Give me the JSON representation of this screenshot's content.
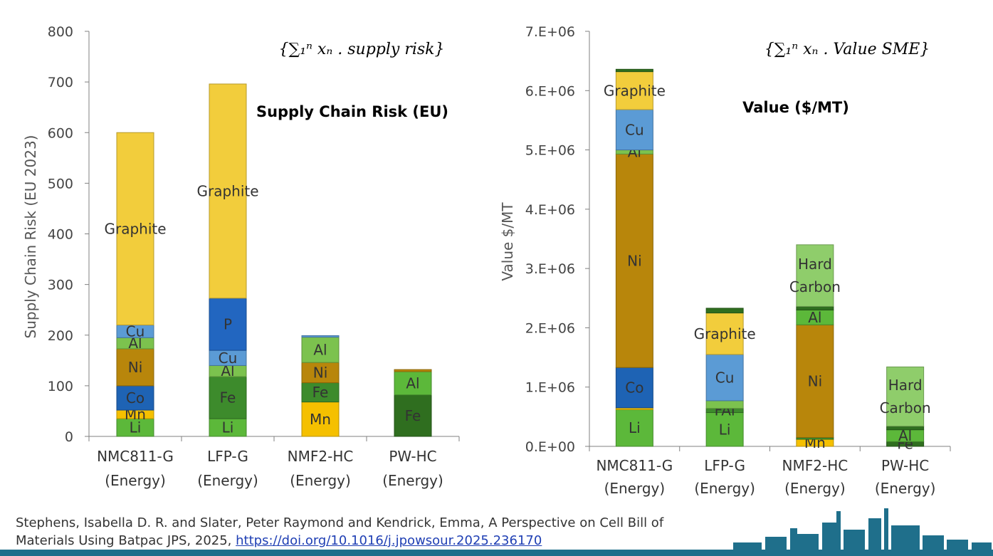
{
  "chart_data": [
    {
      "type": "bar",
      "stacked": true,
      "title": "Supply Chain Risk (EU)",
      "formula": "{∑₁ⁿ xₙ . supply risk}",
      "ylabel": "Supply Chain Risk (EU 2023)",
      "ylim": [
        0,
        800
      ],
      "yticks": [
        "0",
        "100",
        "200",
        "300",
        "400",
        "500",
        "600",
        "700",
        "800"
      ],
      "categories": [
        [
          "NMC811-G",
          "(Energy)"
        ],
        [
          "LFP-G",
          "(Energy)"
        ],
        [
          "NMF2-HC",
          "(Energy)"
        ],
        [
          "PW-HC",
          "(Energy)"
        ]
      ],
      "stacks": [
        [
          {
            "name": "Li",
            "value": 35,
            "color": "#5cb83a",
            "label": "Li"
          },
          {
            "name": "Mn",
            "value": 17,
            "color": "#f5c000",
            "label": "Mn"
          },
          {
            "name": "Co",
            "value": 48,
            "color": "#1e63b4",
            "label": "Co"
          },
          {
            "name": "Ni",
            "value": 73,
            "color": "#b8860b",
            "label": "Ni"
          },
          {
            "name": "Al",
            "value": 22,
            "color": "#7cc24e",
            "label": "Al"
          },
          {
            "name": "Cu",
            "value": 25,
            "color": "#5b9bd5",
            "label": "Cu"
          },
          {
            "name": "Graphite",
            "value": 380,
            "color": "#f2cd3c",
            "label": "Graphite"
          }
        ],
        [
          {
            "name": "Li",
            "value": 35,
            "color": "#5cb83a",
            "label": "Li"
          },
          {
            "name": "Fe",
            "value": 83,
            "color": "#3d8b2c",
            "label": "Fe"
          },
          {
            "name": "Al",
            "value": 22,
            "color": "#7cc24e",
            "label": "Al"
          },
          {
            "name": "Cu",
            "value": 30,
            "color": "#5b9bd5",
            "label": "Cu"
          },
          {
            "name": "P",
            "value": 103,
            "color": "#2266c0",
            "label": "P"
          },
          {
            "name": "Graphite",
            "value": 423,
            "color": "#f2cd3c",
            "label": "Graphite"
          }
        ],
        [
          {
            "name": "Mn",
            "value": 68,
            "color": "#f5c000",
            "label": "Mn"
          },
          {
            "name": "Fe",
            "value": 38,
            "color": "#3d8b2c",
            "label": "Fe"
          },
          {
            "name": "Ni",
            "value": 40,
            "color": "#b8860b",
            "label": "Ni"
          },
          {
            "name": "Al",
            "value": 50,
            "color": "#7cc24e",
            "label": "Al"
          },
          {
            "name": "Cu",
            "value": 3,
            "color": "#5b9bd5",
            "label": ""
          }
        ],
        [
          {
            "name": "Fe",
            "value": 82,
            "color": "#2f6e1f",
            "label": "Fe"
          },
          {
            "name": "Al",
            "value": 46,
            "color": "#5cb83a",
            "label": "Al"
          },
          {
            "name": "Cu",
            "value": 4,
            "color": "#b8860b",
            "label": ""
          }
        ]
      ]
    },
    {
      "type": "bar",
      "stacked": true,
      "title": "Value ($/MT)",
      "formula": "{∑₁ⁿ xₙ . Value SME}",
      "ylabel": "Value $/MT",
      "ylim": [
        0,
        7000000
      ],
      "yticks": [
        "0.E+00",
        "1.E+06",
        "2.E+06",
        "3.E+06",
        "4.E+06",
        "5.E+06",
        "6.E+06",
        "7.E+06"
      ],
      "categories": [
        [
          "NMC811-G",
          "(Energy)"
        ],
        [
          "LFP-G",
          "(Energy)"
        ],
        [
          "NMF2-HC",
          "(Energy)"
        ],
        [
          "PW-HC",
          "(Energy)"
        ]
      ],
      "stacks": [
        [
          {
            "name": "Li",
            "value": 620000,
            "color": "#5cb83a",
            "label": "Li"
          },
          {
            "name": "Mn",
            "value": 30000,
            "color": "#f5c000",
            "label": ""
          },
          {
            "name": "Co",
            "value": 680000,
            "color": "#1e63b4",
            "label": "Co"
          },
          {
            "name": "Ni",
            "value": 3600000,
            "color": "#b8860b",
            "label": "Ni"
          },
          {
            "name": "Al",
            "value": 70000,
            "color": "#7cc24e",
            "label": "Al"
          },
          {
            "name": "Cu",
            "value": 680000,
            "color": "#5b9bd5",
            "label": "Cu"
          },
          {
            "name": "Graphite",
            "value": 640000,
            "color": "#f2cd3c",
            "label": "Graphite"
          },
          {
            "name": "Other",
            "value": 40000,
            "color": "#2f6e1f",
            "label": ""
          }
        ],
        [
          {
            "name": "Li",
            "value": 570000,
            "color": "#5cb83a",
            "label": "Li"
          },
          {
            "name": "Fe",
            "value": 70000,
            "color": "#3d8b2c",
            "label": "FAl"
          },
          {
            "name": "Al",
            "value": 130000,
            "color": "#7cc24e",
            "label": ""
          },
          {
            "name": "Cu",
            "value": 780000,
            "color": "#5b9bd5",
            "label": "Cu"
          },
          {
            "name": "Graphite",
            "value": 700000,
            "color": "#f2cd3c",
            "label": "Graphite"
          },
          {
            "name": "Other",
            "value": 80000,
            "color": "#2f6e1f",
            "label": ""
          }
        ],
        [
          {
            "name": "Mn",
            "value": 120000,
            "color": "#f5c000",
            "label": "Mn"
          },
          {
            "name": "Fe",
            "value": 30000,
            "color": "#3d8b2c",
            "label": ""
          },
          {
            "name": "Ni",
            "value": 1900000,
            "color": "#b8860b",
            "label": "Ni"
          },
          {
            "name": "Al",
            "value": 250000,
            "color": "#5cb83a",
            "label": "Al"
          },
          {
            "name": "Other",
            "value": 60000,
            "color": "#2f6e1f",
            "label": ""
          },
          {
            "name": "Hard Carbon",
            "value": 1040000,
            "color": "#8fcd6b",
            "label": "Hard|Carbon"
          }
        ],
        [
          {
            "name": "Fe",
            "value": 80000,
            "color": "#2f6e1f",
            "label": "Fe"
          },
          {
            "name": "Al",
            "value": 200000,
            "color": "#5cb83a",
            "label": "Al"
          },
          {
            "name": "Other",
            "value": 60000,
            "color": "#2f6e1f",
            "label": ""
          },
          {
            "name": "Hard Carbon",
            "value": 1000000,
            "color": "#8fcd6b",
            "label": "Hard|Carbon"
          }
        ]
      ]
    }
  ],
  "citation": {
    "text": "Stephens, Isabella D. R. and Slater, Peter Raymond and Kendrick, Emma, A Perspective on Cell Bill of Materials Using Batpac JPS, 2025, ",
    "link": "https://doi.org/10.1016/j.jpowsour.2025.236170"
  }
}
